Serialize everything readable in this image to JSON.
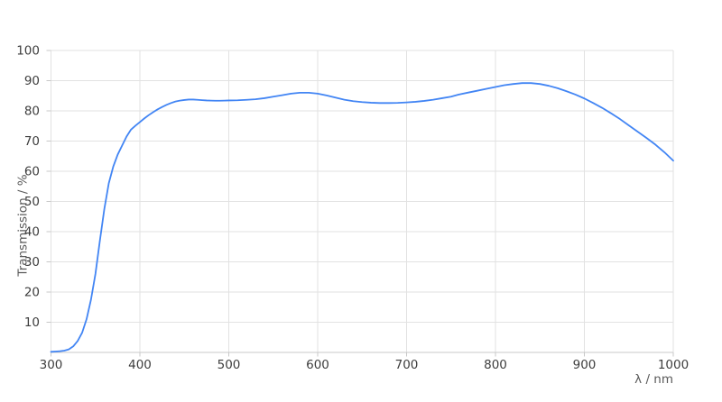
{
  "chart_data": {
    "type": "line",
    "title": "",
    "xlabel": "λ / nm",
    "ylabel": "Transmission / %",
    "xlim": [
      300,
      1000
    ],
    "ylim": [
      0,
      100
    ],
    "xticks": [
      300,
      400,
      500,
      600,
      700,
      800,
      900,
      1000
    ],
    "yticks": [
      10,
      20,
      30,
      40,
      50,
      60,
      70,
      80,
      90,
      100
    ],
    "grid": true,
    "legend": false,
    "legend_position": "none",
    "line_color": "#4285f4",
    "grid_color": "#e2e2e2",
    "axis_color": "#c8c8c8",
    "tick_label_color": "#3d3d3d",
    "axis_title_color": "#595959",
    "background_color": "#ffffff",
    "series": [
      {
        "name": "Transmission",
        "x": [
          300,
          305,
          310,
          315,
          320,
          325,
          330,
          335,
          340,
          345,
          350,
          355,
          360,
          365,
          370,
          375,
          380,
          385,
          390,
          395,
          400,
          405,
          410,
          415,
          420,
          425,
          430,
          435,
          440,
          445,
          450,
          455,
          460,
          465,
          470,
          475,
          480,
          485,
          490,
          495,
          500,
          510,
          520,
          530,
          540,
          550,
          560,
          570,
          580,
          590,
          600,
          610,
          620,
          630,
          640,
          650,
          660,
          670,
          680,
          690,
          700,
          710,
          720,
          730,
          740,
          750,
          760,
          770,
          780,
          790,
          800,
          810,
          820,
          830,
          840,
          850,
          860,
          870,
          880,
          890,
          900,
          910,
          920,
          930,
          940,
          950,
          960,
          970,
          980,
          990,
          1000
        ],
        "y": [
          0.2,
          0.3,
          0.4,
          0.6,
          1.0,
          2.0,
          3.8,
          6.5,
          11.0,
          17.5,
          26.0,
          37.0,
          47.5,
          56.0,
          61.5,
          65.5,
          68.5,
          71.5,
          73.8,
          75.1,
          76.3,
          77.5,
          78.6,
          79.6,
          80.5,
          81.3,
          82.0,
          82.6,
          83.1,
          83.4,
          83.6,
          83.75,
          83.75,
          83.65,
          83.55,
          83.45,
          83.4,
          83.35,
          83.35,
          83.4,
          83.45,
          83.5,
          83.65,
          83.85,
          84.2,
          84.7,
          85.2,
          85.7,
          86.0,
          86.0,
          85.7,
          85.1,
          84.4,
          83.7,
          83.2,
          82.9,
          82.7,
          82.6,
          82.6,
          82.65,
          82.8,
          83.0,
          83.3,
          83.7,
          84.2,
          84.7,
          85.5,
          86.1,
          86.7,
          87.3,
          87.9,
          88.5,
          88.9,
          89.2,
          89.2,
          88.9,
          88.3,
          87.5,
          86.5,
          85.4,
          84.1,
          82.6,
          81.0,
          79.2,
          77.3,
          75.2,
          73.1,
          71.0,
          68.8,
          66.3,
          63.5
        ]
      }
    ]
  }
}
